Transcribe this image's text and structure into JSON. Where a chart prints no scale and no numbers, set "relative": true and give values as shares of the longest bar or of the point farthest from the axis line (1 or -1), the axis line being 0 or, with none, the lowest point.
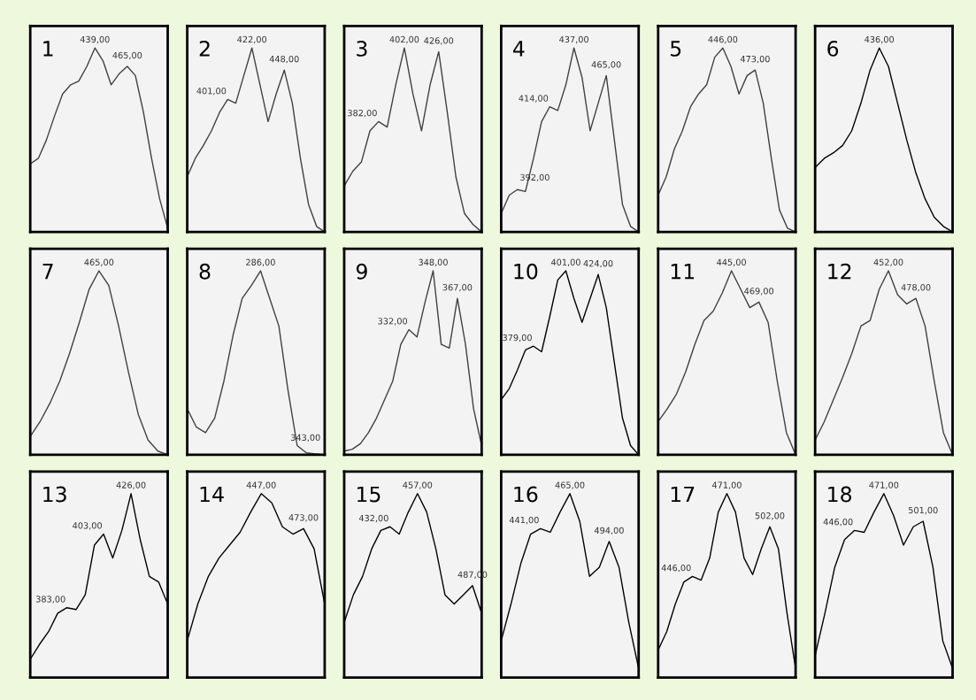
{
  "chart_data": [
    {
      "type": "line",
      "title": "1",
      "color": "#404040",
      "relative": true,
      "categories": [
        null,
        null,
        null,
        null,
        null,
        null,
        null,
        null,
        null,
        null,
        null,
        null,
        null,
        null,
        null,
        null,
        null,
        null
      ],
      "values": [
        0.37,
        0.4,
        0.5,
        0.63,
        0.75,
        0.8,
        0.82,
        0.9,
        1.0,
        0.93,
        0.8,
        0.86,
        0.9,
        0.85,
        0.65,
        0.4,
        0.18,
        0.02
      ],
      "annotations": [
        "439,00",
        "465,00"
      ]
    },
    {
      "type": "line",
      "title": "2",
      "color": "#404040",
      "relative": true,
      "categories": [
        null,
        null,
        null,
        null,
        null,
        null,
        null,
        null,
        null,
        null,
        null,
        null,
        null,
        null,
        null,
        null,
        null,
        null
      ],
      "values": [
        0.3,
        0.4,
        0.47,
        0.55,
        0.65,
        0.72,
        0.7,
        0.85,
        1.0,
        0.8,
        0.6,
        0.75,
        0.88,
        0.7,
        0.4,
        0.15,
        0.03,
        0.0
      ],
      "annotations": [
        "401,00",
        "422,00",
        "448,00"
      ]
    },
    {
      "type": "line",
      "title": "3",
      "color": "#404040",
      "relative": true,
      "categories": [
        null,
        null,
        null,
        null,
        null,
        null,
        null,
        null,
        null,
        null,
        null,
        null,
        null,
        null,
        null,
        null,
        null
      ],
      "values": [
        0.25,
        0.33,
        0.38,
        0.55,
        0.6,
        0.57,
        0.8,
        1.0,
        0.75,
        0.55,
        0.8,
        0.98,
        0.65,
        0.3,
        0.1,
        0.04,
        0.0
      ],
      "annotations": [
        "382,00",
        "402,00",
        "426,00"
      ]
    },
    {
      "type": "line",
      "title": "4",
      "color": "#404040",
      "relative": true,
      "categories": [
        null,
        null,
        null,
        null,
        null,
        null,
        null,
        null,
        null,
        null,
        null,
        null,
        null,
        null,
        null,
        null,
        null,
        null
      ],
      "values": [
        0.1,
        0.2,
        0.23,
        0.22,
        0.4,
        0.6,
        0.68,
        0.66,
        0.8,
        1.0,
        0.84,
        0.55,
        0.7,
        0.85,
        0.5,
        0.15,
        0.03,
        0.0
      ],
      "annotations": [
        "392,00",
        "414,00",
        "437,00",
        "465,00"
      ]
    },
    {
      "type": "line",
      "title": "5",
      "color": "#404040",
      "relative": true,
      "categories": [
        null,
        null,
        null,
        null,
        null,
        null,
        null,
        null,
        null,
        null,
        null,
        null,
        null,
        null,
        null,
        null,
        null,
        null
      ],
      "values": [
        0.2,
        0.3,
        0.45,
        0.55,
        0.68,
        0.75,
        0.8,
        0.95,
        1.0,
        0.9,
        0.75,
        0.85,
        0.88,
        0.7,
        0.4,
        0.12,
        0.02,
        0.0
      ],
      "annotations": [
        "446,00",
        "473,00"
      ]
    },
    {
      "type": "line",
      "title": "6",
      "color": "#000000",
      "relative": true,
      "categories": [
        null,
        null,
        null,
        null,
        null,
        null,
        null,
        null,
        null,
        null,
        null,
        null,
        null,
        null,
        null,
        null
      ],
      "values": [
        0.35,
        0.4,
        0.43,
        0.47,
        0.55,
        0.7,
        0.88,
        1.0,
        0.9,
        0.7,
        0.5,
        0.32,
        0.18,
        0.08,
        0.03,
        0.0
      ],
      "annotations": [
        "436,00"
      ]
    },
    {
      "type": "line",
      "title": "7",
      "color": "#404040",
      "relative": true,
      "categories": [
        null,
        null,
        null,
        null,
        null,
        null,
        null,
        null,
        null,
        null,
        null,
        null,
        null,
        null,
        null
      ],
      "values": [
        0.1,
        0.18,
        0.28,
        0.4,
        0.55,
        0.72,
        0.9,
        1.0,
        0.92,
        0.7,
        0.45,
        0.22,
        0.08,
        0.02,
        0.0
      ],
      "annotations": [
        "465,00"
      ]
    },
    {
      "type": "line",
      "title": "8",
      "color": "#404040",
      "relative": true,
      "categories": [
        null,
        null,
        null,
        null,
        null,
        null,
        null,
        null,
        null,
        null,
        null,
        null,
        null,
        null,
        null,
        null
      ],
      "values": [
        0.25,
        0.15,
        0.12,
        0.2,
        0.4,
        0.65,
        0.85,
        0.92,
        1.0,
        0.85,
        0.7,
        0.35,
        0.05,
        0.01,
        0.005,
        0.0
      ],
      "annotations": [
        "286,00",
        "343,00"
      ]
    },
    {
      "type": "line",
      "title": "9",
      "color": "#404040",
      "relative": true,
      "categories": [
        null,
        null,
        null,
        null,
        null,
        null,
        null,
        null,
        null,
        null,
        null,
        null,
        null,
        null,
        null,
        null,
        null,
        null
      ],
      "values": [
        0.02,
        0.03,
        0.06,
        0.12,
        0.2,
        0.3,
        0.4,
        0.6,
        0.68,
        0.64,
        0.83,
        1.0,
        0.6,
        0.58,
        0.85,
        0.6,
        0.25,
        0.05
      ],
      "annotations": [
        "332,00",
        "348,00",
        "367,00"
      ]
    },
    {
      "type": "line",
      "title": "10",
      "color": "#000000",
      "relative": true,
      "categories": [
        null,
        null,
        null,
        null,
        null,
        null,
        null,
        null,
        null,
        null,
        null,
        null,
        null,
        null,
        null,
        null,
        null,
        null
      ],
      "values": [
        0.3,
        0.36,
        0.46,
        0.57,
        0.59,
        0.56,
        0.75,
        0.95,
        1.0,
        0.85,
        0.72,
        0.85,
        0.98,
        0.8,
        0.5,
        0.2,
        0.05,
        0.0
      ],
      "annotations": [
        "379,00",
        "401,00",
        "424,00"
      ]
    },
    {
      "type": "line",
      "title": "11",
      "color": "#404040",
      "relative": true,
      "categories": [
        null,
        null,
        null,
        null,
        null,
        null,
        null,
        null,
        null,
        null,
        null,
        null,
        null,
        null,
        null,
        null
      ],
      "values": [
        0.18,
        0.25,
        0.33,
        0.45,
        0.6,
        0.73,
        0.78,
        0.88,
        1.0,
        0.9,
        0.8,
        0.83,
        0.72,
        0.4,
        0.12,
        0.0
      ],
      "annotations": [
        "445,00",
        "469,00"
      ]
    },
    {
      "type": "line",
      "title": "12",
      "color": "#404040",
      "relative": true,
      "categories": [
        null,
        null,
        null,
        null,
        null,
        null,
        null,
        null,
        null,
        null,
        null,
        null,
        null,
        null,
        null,
        null
      ],
      "values": [
        0.08,
        0.18,
        0.3,
        0.42,
        0.55,
        0.7,
        0.73,
        0.9,
        1.0,
        0.87,
        0.82,
        0.85,
        0.7,
        0.4,
        0.12,
        0.0
      ],
      "annotations": [
        "452,00",
        "478,00"
      ]
    },
    {
      "type": "line",
      "title": "13",
      "color": "#000000",
      "relative": true,
      "categories": [
        null,
        null,
        null,
        null,
        null,
        null,
        null,
        null,
        null,
        null,
        null,
        null,
        null,
        null,
        null,
        null
      ],
      "values": [
        0.1,
        0.18,
        0.25,
        0.35,
        0.38,
        0.37,
        0.45,
        0.72,
        0.78,
        0.65,
        0.8,
        1.0,
        0.75,
        0.55,
        0.52,
        0.4
      ],
      "annotations": [
        "383,00",
        "403,00",
        "426,00"
      ]
    },
    {
      "type": "line",
      "title": "14",
      "color": "#000000",
      "relative": true,
      "categories": [
        null,
        null,
        null,
        null,
        null,
        null,
        null,
        null,
        null,
        null,
        null,
        null,
        null,
        null
      ],
      "values": [
        0.2,
        0.4,
        0.55,
        0.65,
        0.72,
        0.79,
        0.9,
        1.0,
        0.95,
        0.82,
        0.78,
        0.81,
        0.7,
        0.4
      ],
      "annotations": [
        "447,00",
        "473,00"
      ]
    },
    {
      "type": "line",
      "title": "15",
      "color": "#000000",
      "relative": true,
      "categories": [
        null,
        null,
        null,
        null,
        null,
        null,
        null,
        null,
        null,
        null,
        null,
        null,
        null,
        null,
        null,
        null
      ],
      "values": [
        0.3,
        0.45,
        0.55,
        0.7,
        0.8,
        0.82,
        0.78,
        0.9,
        1.0,
        0.9,
        0.7,
        0.45,
        0.4,
        0.45,
        0.5,
        0.35
      ],
      "annotations": [
        "432,00",
        "457,00",
        "487,00"
      ]
    },
    {
      "type": "line",
      "title": "16",
      "color": "#000000",
      "relative": true,
      "categories": [
        null,
        null,
        null,
        null,
        null,
        null,
        null,
        null,
        null,
        null,
        null,
        null,
        null,
        null,
        null
      ],
      "values": [
        0.2,
        0.4,
        0.62,
        0.78,
        0.81,
        0.79,
        0.9,
        1.0,
        0.85,
        0.55,
        0.6,
        0.74,
        0.6,
        0.3,
        0.05
      ],
      "annotations": [
        "441,00",
        "465,00",
        "494,00"
      ]
    },
    {
      "type": "line",
      "title": "17",
      "color": "#000000",
      "relative": true,
      "categories": [
        null,
        null,
        null,
        null,
        null,
        null,
        null,
        null,
        null,
        null,
        null,
        null,
        null,
        null,
        null,
        null,
        null
      ],
      "values": [
        0.15,
        0.25,
        0.4,
        0.52,
        0.55,
        0.53,
        0.65,
        0.9,
        1.0,
        0.9,
        0.65,
        0.56,
        0.7,
        0.82,
        0.7,
        0.35,
        0.05
      ],
      "annotations": [
        "446,00",
        "471,00",
        "502,00"
      ]
    },
    {
      "type": "line",
      "title": "18",
      "color": "#000000",
      "relative": true,
      "categories": [
        null,
        null,
        null,
        null,
        null,
        null,
        null,
        null,
        null,
        null,
        null,
        null,
        null,
        null,
        null
      ],
      "values": [
        0.12,
        0.35,
        0.6,
        0.75,
        0.8,
        0.79,
        0.9,
        1.0,
        0.88,
        0.72,
        0.82,
        0.85,
        0.6,
        0.2,
        0.05
      ],
      "annotations": [
        "446,00",
        "471,00",
        "501,00"
      ]
    }
  ]
}
